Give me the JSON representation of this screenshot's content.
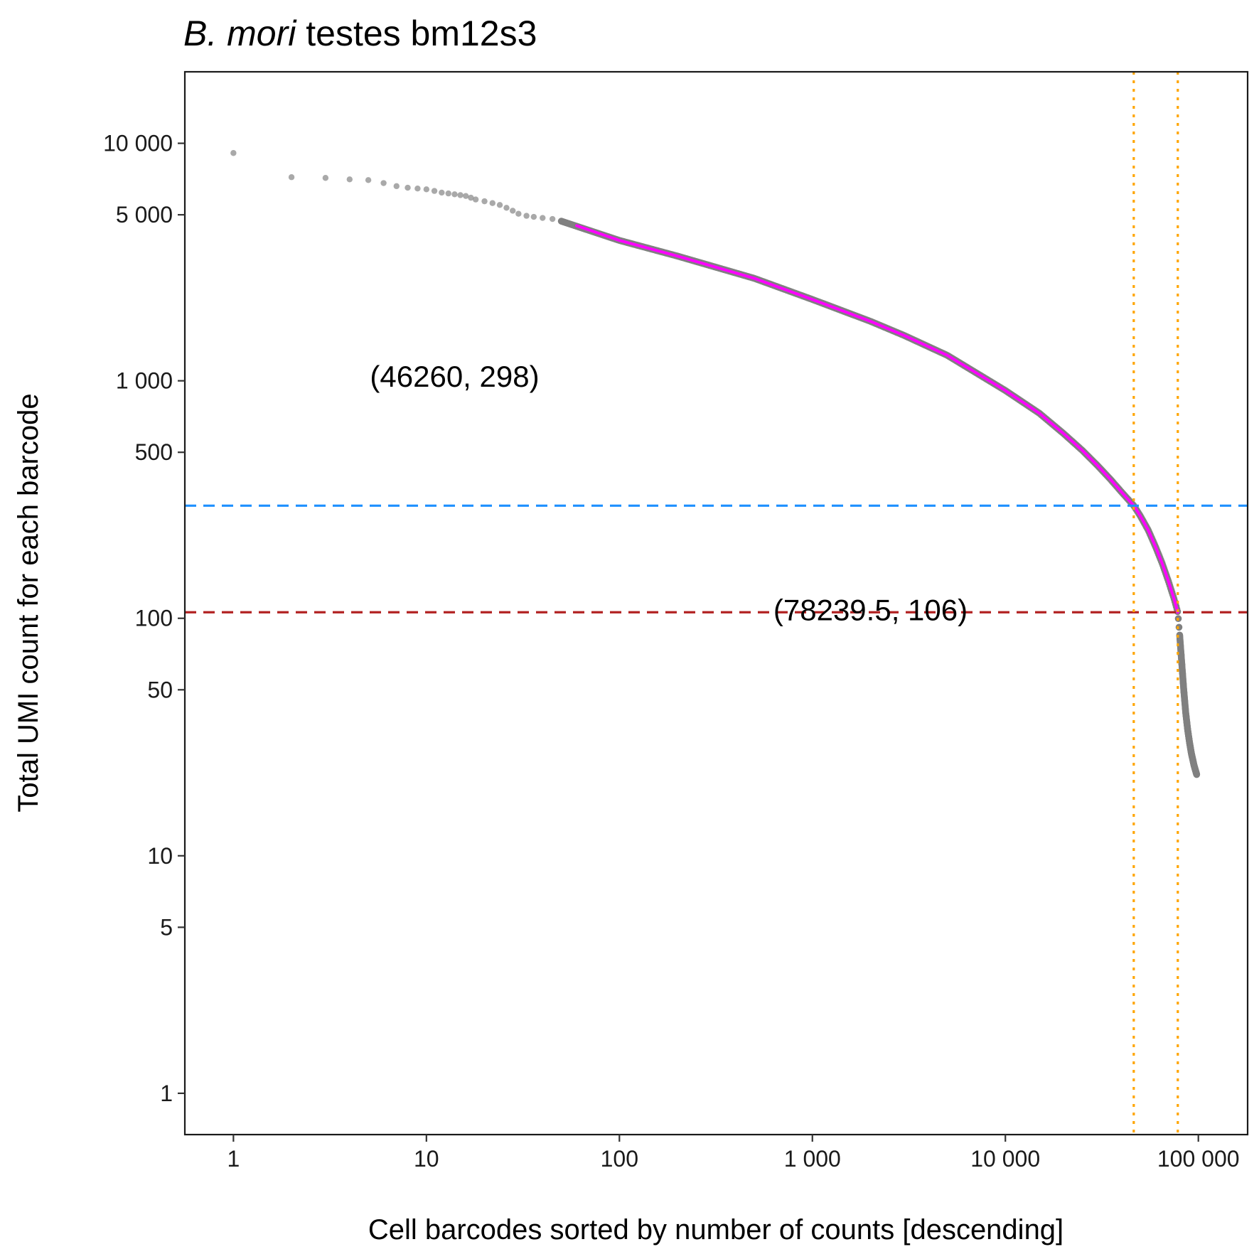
{
  "chart_data": {
    "type": "scatter",
    "title": {
      "italic": "B. mori",
      "rest": " testes bm12s3"
    },
    "xlabel": "Cell barcodes sorted by number of counts [descending]",
    "ylabel": "Total UMI count for each barcode",
    "x_scale": "log10",
    "y_scale": "log10",
    "xlim": [
      0.56,
      180000
    ],
    "ylim": [
      0.67,
      20000
    ],
    "grid": false,
    "x_ticks": [
      {
        "value": 1,
        "label": "1"
      },
      {
        "value": 10,
        "label": "10"
      },
      {
        "value": 100,
        "label": "100"
      },
      {
        "value": 1000,
        "label": "1 000"
      },
      {
        "value": 10000,
        "label": "10 000"
      },
      {
        "value": 100000,
        "label": "100 000"
      }
    ],
    "y_ticks": [
      {
        "value": 1,
        "label": "1"
      },
      {
        "value": 5,
        "label": "5"
      },
      {
        "value": 10,
        "label": "10"
      },
      {
        "value": 50,
        "label": "50"
      },
      {
        "value": 100,
        "label": "100"
      },
      {
        "value": 500,
        "label": "500"
      },
      {
        "value": 1000,
        "label": "1 000"
      },
      {
        "value": 5000,
        "label": "5 000"
      },
      {
        "value": 10000,
        "label": "10 000"
      }
    ],
    "series": [
      {
        "color": "#8c8c8c",
        "points": [
          [
            1,
            9100
          ],
          [
            2,
            7200
          ],
          [
            3,
            7150
          ],
          [
            4,
            7050
          ],
          [
            5,
            7000
          ],
          [
            6,
            6800
          ],
          [
            7,
            6600
          ],
          [
            8,
            6500
          ],
          [
            9,
            6450
          ],
          [
            10,
            6400
          ],
          [
            11,
            6300
          ],
          [
            12,
            6200
          ],
          [
            13,
            6150
          ],
          [
            14,
            6100
          ],
          [
            15,
            6050
          ],
          [
            16,
            6000
          ],
          [
            17,
            5900
          ],
          [
            18,
            5800
          ],
          [
            20,
            5700
          ],
          [
            22,
            5600
          ],
          [
            24,
            5500
          ],
          [
            26,
            5350
          ],
          [
            28,
            5200
          ],
          [
            30,
            5050
          ],
          [
            33,
            4950
          ],
          [
            36,
            4900
          ],
          [
            40,
            4850
          ],
          [
            45,
            4800
          ],
          [
            50,
            4700
          ]
        ]
      },
      {
        "color": "#808080",
        "curve": [
          [
            50,
            4700
          ],
          [
            100,
            3900
          ],
          [
            200,
            3350
          ],
          [
            500,
            2700
          ],
          [
            1000,
            2200
          ],
          [
            2000,
            1780
          ],
          [
            3000,
            1550
          ],
          [
            5000,
            1280
          ],
          [
            10000,
            910
          ],
          [
            15000,
            730
          ],
          [
            20000,
            600
          ],
          [
            25000,
            510
          ],
          [
            30000,
            440
          ],
          [
            35000,
            385
          ],
          [
            40000,
            340
          ],
          [
            46260,
            298
          ],
          [
            50000,
            270
          ],
          [
            55000,
            235
          ],
          [
            60000,
            200
          ],
          [
            65000,
            170
          ],
          [
            70000,
            143
          ],
          [
            75000,
            120
          ],
          [
            78239.5,
            106
          ],
          [
            80000,
            85
          ],
          [
            82000,
            65
          ],
          [
            84000,
            50
          ],
          [
            86000,
            40
          ],
          [
            88000,
            34
          ],
          [
            90000,
            30
          ],
          [
            92000,
            27
          ],
          [
            95000,
            24
          ],
          [
            98000,
            22
          ]
        ]
      },
      {
        "color": "#ff00ff",
        "curve": [
          [
            60,
            4500
          ],
          [
            100,
            3900
          ],
          [
            200,
            3350
          ],
          [
            500,
            2700
          ],
          [
            1000,
            2200
          ],
          [
            2000,
            1780
          ],
          [
            3000,
            1550
          ],
          [
            5000,
            1280
          ],
          [
            10000,
            910
          ],
          [
            15000,
            730
          ],
          [
            20000,
            600
          ],
          [
            25000,
            510
          ],
          [
            30000,
            440
          ],
          [
            35000,
            385
          ],
          [
            40000,
            340
          ],
          [
            46260,
            298
          ],
          [
            50000,
            270
          ],
          [
            55000,
            235
          ],
          [
            60000,
            200
          ],
          [
            65000,
            170
          ],
          [
            70000,
            143
          ],
          [
            75000,
            120
          ],
          [
            78239.5,
            106
          ]
        ]
      }
    ],
    "hlines": [
      {
        "y": 298,
        "color": "#1e90ff",
        "style": "dashed"
      },
      {
        "y": 106,
        "color": "#b22222",
        "style": "dashed"
      }
    ],
    "vlines": [
      {
        "x": 46260,
        "color": "#ffa500",
        "style": "dotted"
      },
      {
        "x": 78239.5,
        "color": "#ffa500",
        "style": "dotted"
      }
    ],
    "annotations": [
      {
        "text": "(46260, 298)",
        "x": 14,
        "y": 1020
      },
      {
        "text": "(78239.5, 106)",
        "x": 2000,
        "y": 106
      }
    ]
  }
}
